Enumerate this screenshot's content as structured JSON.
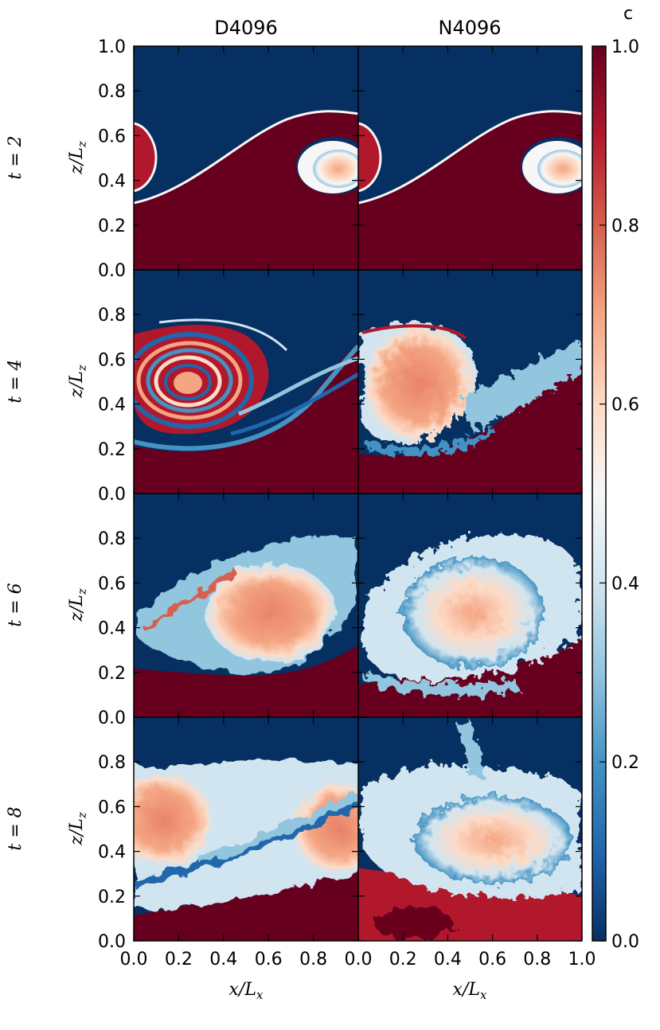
{
  "chart_data": {
    "type": "heatmap",
    "columns": [
      "D4096",
      "N4096"
    ],
    "rows": [
      {
        "time_label": "t = 2",
        "t": 2
      },
      {
        "time_label": "t = 4",
        "t": 4
      },
      {
        "time_label": "t = 6",
        "t": 6
      },
      {
        "time_label": "t = 8",
        "t": 8
      }
    ],
    "xlabel": "x/L",
    "xlabel_sub": "x",
    "ylabel": "z/L",
    "ylabel_sub": "z",
    "xlim": [
      0.0,
      1.0
    ],
    "ylim": [
      0.0,
      1.0
    ],
    "x_ticks": [
      "0.0",
      "0.2",
      "0.4",
      "0.6",
      "0.8",
      "1.0"
    ],
    "y_ticks": [
      "0.0",
      "0.2",
      "0.4",
      "0.6",
      "0.8",
      "1.0"
    ],
    "colorbar": {
      "label": "c",
      "range": [
        0.0,
        1.0
      ],
      "ticks": [
        "0.0",
        "0.2",
        "0.4",
        "0.6",
        "0.8",
        "1.0"
      ],
      "colormap": "RdBu_r",
      "colors": [
        "#053061",
        "#2166ac",
        "#4393c3",
        "#92c5de",
        "#d1e5f0",
        "#f7f7f7",
        "#fddbc7",
        "#f4a582",
        "#d6604d",
        "#b2182b",
        "#67001f"
      ]
    },
    "background_low_color": "#67001f",
    "background_high_color": "#053061"
  }
}
